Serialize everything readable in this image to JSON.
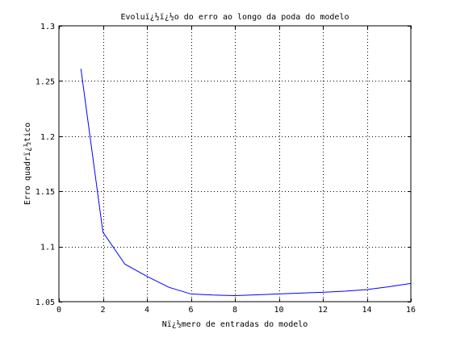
{
  "chart_data": {
    "type": "line",
    "title": "Evoluï¿½ï¿½o do erro ao longo da poda do modelo",
    "xlabel": "Nï¿½mero de entradas do modelo",
    "ylabel": "Erro quadrï¿½tico",
    "xlim": [
      0,
      16
    ],
    "ylim": [
      1.05,
      1.3
    ],
    "xticks": [
      0,
      2,
      4,
      6,
      8,
      10,
      12,
      14,
      16
    ],
    "yticks": [
      1.05,
      1.1,
      1.15,
      1.2,
      1.25,
      1.3
    ],
    "xtick_labels": [
      "0",
      "2",
      "4",
      "6",
      "8",
      "10",
      "12",
      "14",
      "16"
    ],
    "ytick_labels": [
      "1.05",
      "1.1",
      "1.15",
      "1.2",
      "1.25",
      "1.3"
    ],
    "grid": true,
    "series": [
      {
        "color": "#0000ff",
        "x": [
          1,
          2,
          3,
          4,
          5,
          6,
          7,
          8,
          9,
          10,
          11,
          12,
          13,
          14,
          15,
          16
        ],
        "y": [
          1.261,
          1.113,
          1.084,
          1.073,
          1.063,
          1.057,
          1.056,
          1.0555,
          1.0562,
          1.057,
          1.0578,
          1.0585,
          1.0595,
          1.061,
          1.0635,
          1.0665
        ]
      }
    ]
  }
}
